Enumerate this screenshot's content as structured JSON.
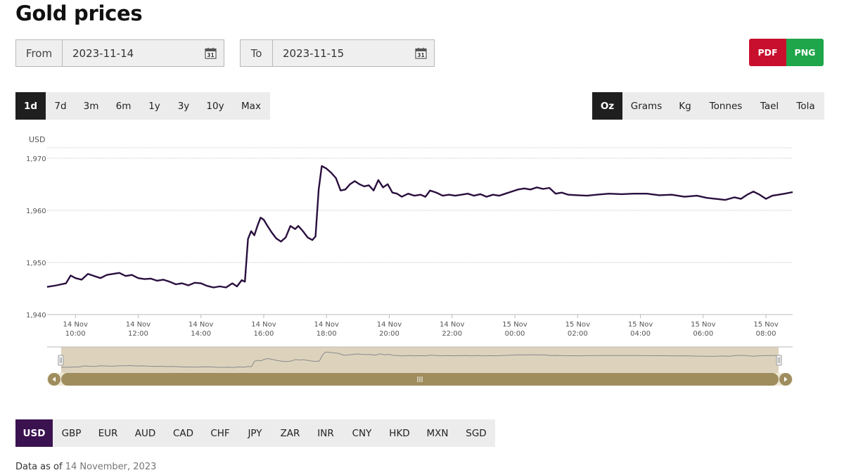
{
  "page": {
    "title": "Gold prices"
  },
  "range": {
    "from_label": "From",
    "from_value": "2023-11-14",
    "to_label": "To",
    "to_value": "2023-11-15",
    "calendar_icon": "calendar-icon",
    "calendar_day": "31"
  },
  "export": {
    "pdf_label": "PDF",
    "png_label": "PNG",
    "pdf_color": "#c8102e",
    "png_color": "#1fa64a"
  },
  "periods": {
    "selected": "1d",
    "items": [
      "1d",
      "7d",
      "3m",
      "6m",
      "1y",
      "3y",
      "10y",
      "Max"
    ]
  },
  "units": {
    "selected": "Oz",
    "items": [
      "Oz",
      "Grams",
      "Kg",
      "Tonnes",
      "Tael",
      "Tola"
    ]
  },
  "currencies": {
    "selected": "USD",
    "items": [
      "USD",
      "GBP",
      "EUR",
      "AUD",
      "CAD",
      "CHF",
      "JPY",
      "ZAR",
      "INR",
      "CNY",
      "HKD",
      "MXN",
      "SGD"
    ],
    "selected_color": "#3b1250"
  },
  "footer": {
    "prefix": "Data as of ",
    "date": "14 November, 2023"
  },
  "chart_data": {
    "type": "line",
    "ylabel": "USD",
    "ylim": [
      1940,
      1972
    ],
    "yticks": [
      1940,
      1950,
      1960,
      1970
    ],
    "ytick_labels": [
      "1,940",
      "1,950",
      "1,960",
      "1,970"
    ],
    "grid": true,
    "line_color": "#2a0f3e",
    "xticks": [
      {
        "h": 10,
        "line1": "14 Nov",
        "line2": "10:00"
      },
      {
        "h": 12,
        "line1": "14 Nov",
        "line2": "12:00"
      },
      {
        "h": 14,
        "line1": "14 Nov",
        "line2": "14:00"
      },
      {
        "h": 16,
        "line1": "14 Nov",
        "line2": "16:00"
      },
      {
        "h": 18,
        "line1": "14 Nov",
        "line2": "18:00"
      },
      {
        "h": 20,
        "line1": "14 Nov",
        "line2": "20:00"
      },
      {
        "h": 22,
        "line1": "14 Nov",
        "line2": "22:00"
      },
      {
        "h": 24,
        "line1": "15 Nov",
        "line2": "00:00"
      },
      {
        "h": 26,
        "line1": "15 Nov",
        "line2": "02:00"
      },
      {
        "h": 28,
        "line1": "15 Nov",
        "line2": "04:00"
      },
      {
        "h": 30,
        "line1": "15 Nov",
        "line2": "06:00"
      },
      {
        "h": 32,
        "line1": "15 Nov",
        "line2": "08:00"
      }
    ],
    "xrange": [
      9.1,
      32.85
    ],
    "series": [
      {
        "values": [
          [
            9.1,
            1945.3
          ],
          [
            9.4,
            1945.6
          ],
          [
            9.7,
            1946.0
          ],
          [
            9.85,
            1947.5
          ],
          [
            10.0,
            1947.0
          ],
          [
            10.2,
            1946.7
          ],
          [
            10.4,
            1947.8
          ],
          [
            10.6,
            1947.4
          ],
          [
            10.8,
            1947.0
          ],
          [
            11.0,
            1947.6
          ],
          [
            11.2,
            1947.8
          ],
          [
            11.4,
            1948.0
          ],
          [
            11.6,
            1947.4
          ],
          [
            11.8,
            1947.6
          ],
          [
            12.0,
            1947.0
          ],
          [
            12.2,
            1946.8
          ],
          [
            12.4,
            1946.9
          ],
          [
            12.6,
            1946.5
          ],
          [
            12.8,
            1946.7
          ],
          [
            13.0,
            1946.3
          ],
          [
            13.2,
            1945.8
          ],
          [
            13.4,
            1946.0
          ],
          [
            13.6,
            1945.6
          ],
          [
            13.8,
            1946.1
          ],
          [
            14.0,
            1946.0
          ],
          [
            14.2,
            1945.5
          ],
          [
            14.4,
            1945.2
          ],
          [
            14.6,
            1945.4
          ],
          [
            14.8,
            1945.2
          ],
          [
            15.0,
            1946.0
          ],
          [
            15.15,
            1945.4
          ],
          [
            15.3,
            1946.6
          ],
          [
            15.4,
            1946.3
          ],
          [
            15.5,
            1954.5
          ],
          [
            15.6,
            1956.0
          ],
          [
            15.7,
            1955.2
          ],
          [
            15.8,
            1957.0
          ],
          [
            15.9,
            1958.6
          ],
          [
            16.0,
            1958.2
          ],
          [
            16.1,
            1957.2
          ],
          [
            16.25,
            1955.8
          ],
          [
            16.4,
            1954.6
          ],
          [
            16.55,
            1954.0
          ],
          [
            16.7,
            1954.8
          ],
          [
            16.85,
            1957.0
          ],
          [
            17.0,
            1956.4
          ],
          [
            17.1,
            1957.0
          ],
          [
            17.25,
            1956.0
          ],
          [
            17.4,
            1954.8
          ],
          [
            17.55,
            1954.3
          ],
          [
            17.65,
            1955.0
          ],
          [
            17.75,
            1964.0
          ],
          [
            17.85,
            1968.5
          ],
          [
            18.0,
            1968.0
          ],
          [
            18.15,
            1967.2
          ],
          [
            18.3,
            1966.2
          ],
          [
            18.45,
            1963.8
          ],
          [
            18.6,
            1964.0
          ],
          [
            18.75,
            1965.0
          ],
          [
            18.9,
            1965.6
          ],
          [
            19.05,
            1965.0
          ],
          [
            19.2,
            1964.6
          ],
          [
            19.35,
            1964.8
          ],
          [
            19.5,
            1963.8
          ],
          [
            19.65,
            1965.8
          ],
          [
            19.8,
            1964.4
          ],
          [
            19.95,
            1965.0
          ],
          [
            20.1,
            1963.4
          ],
          [
            20.25,
            1963.2
          ],
          [
            20.4,
            1962.6
          ],
          [
            20.6,
            1963.2
          ],
          [
            20.8,
            1962.8
          ],
          [
            21.0,
            1963.0
          ],
          [
            21.15,
            1962.6
          ],
          [
            21.3,
            1963.8
          ],
          [
            21.5,
            1963.4
          ],
          [
            21.7,
            1962.8
          ],
          [
            21.9,
            1963.0
          ],
          [
            22.1,
            1962.8
          ],
          [
            22.3,
            1963.0
          ],
          [
            22.5,
            1963.2
          ],
          [
            22.7,
            1962.8
          ],
          [
            22.9,
            1963.1
          ],
          [
            23.1,
            1962.6
          ],
          [
            23.3,
            1963.0
          ],
          [
            23.5,
            1962.8
          ],
          [
            23.7,
            1963.2
          ],
          [
            23.9,
            1963.6
          ],
          [
            24.1,
            1964.0
          ],
          [
            24.3,
            1964.2
          ],
          [
            24.5,
            1964.0
          ],
          [
            24.7,
            1964.4
          ],
          [
            24.9,
            1964.1
          ],
          [
            25.1,
            1964.3
          ],
          [
            25.3,
            1963.2
          ],
          [
            25.5,
            1963.4
          ],
          [
            25.7,
            1963.0
          ],
          [
            26.0,
            1962.9
          ],
          [
            26.3,
            1962.8
          ],
          [
            26.6,
            1963.0
          ],
          [
            27.0,
            1963.2
          ],
          [
            27.4,
            1963.1
          ],
          [
            27.8,
            1963.2
          ],
          [
            28.2,
            1963.2
          ],
          [
            28.6,
            1962.9
          ],
          [
            29.0,
            1963.0
          ],
          [
            29.4,
            1962.6
          ],
          [
            29.8,
            1962.8
          ],
          [
            30.1,
            1962.4
          ],
          [
            30.4,
            1962.2
          ],
          [
            30.7,
            1962.0
          ],
          [
            31.0,
            1962.5
          ],
          [
            31.2,
            1962.2
          ],
          [
            31.4,
            1963.0
          ],
          [
            31.6,
            1963.6
          ],
          [
            31.8,
            1963.0
          ],
          [
            32.0,
            1962.2
          ],
          [
            32.2,
            1962.8
          ],
          [
            32.4,
            1963.0
          ],
          [
            32.6,
            1963.2
          ],
          [
            32.85,
            1963.5
          ]
        ]
      }
    ]
  }
}
